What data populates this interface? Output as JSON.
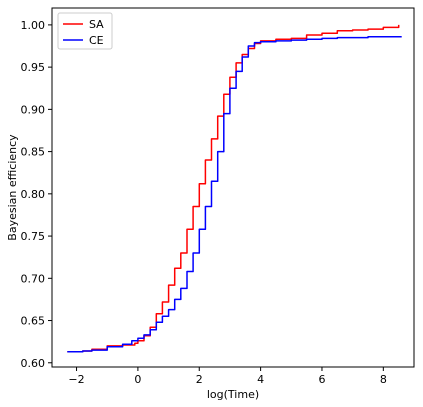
{
  "chart_data": {
    "type": "line",
    "title": "",
    "xlabel": "log(Time)",
    "ylabel": "Bayesian efficiency",
    "xlim": [
      -2.8,
      9.0
    ],
    "ylim": [
      0.595,
      1.02
    ],
    "grid": false,
    "legend_position": "top-left",
    "x_ticks": [
      -2,
      0,
      2,
      4,
      6,
      8
    ],
    "y_ticks": [
      0.6,
      0.65,
      0.7,
      0.75,
      0.8,
      0.85,
      0.9,
      0.95,
      1.0
    ],
    "series": [
      {
        "name": "SA",
        "color": "#ff0000",
        "points": [
          [
            -2.3,
            0.613
          ],
          [
            -1.8,
            0.614
          ],
          [
            -1.5,
            0.616
          ],
          [
            -1.0,
            0.62
          ],
          [
            -0.5,
            0.621
          ],
          [
            -0.3,
            0.621
          ],
          [
            -0.1,
            0.623
          ],
          [
            0.0,
            0.626
          ],
          [
            0.2,
            0.632
          ],
          [
            0.4,
            0.642
          ],
          [
            0.6,
            0.658
          ],
          [
            0.8,
            0.672
          ],
          [
            1.0,
            0.692
          ],
          [
            1.2,
            0.712
          ],
          [
            1.4,
            0.73
          ],
          [
            1.6,
            0.758
          ],
          [
            1.8,
            0.785
          ],
          [
            2.0,
            0.812
          ],
          [
            2.2,
            0.84
          ],
          [
            2.4,
            0.865
          ],
          [
            2.6,
            0.892
          ],
          [
            2.8,
            0.918
          ],
          [
            3.0,
            0.938
          ],
          [
            3.2,
            0.955
          ],
          [
            3.4,
            0.965
          ],
          [
            3.6,
            0.972
          ],
          [
            3.8,
            0.978
          ],
          [
            4.0,
            0.981
          ],
          [
            4.5,
            0.983
          ],
          [
            5.0,
            0.984
          ],
          [
            5.5,
            0.988
          ],
          [
            6.0,
            0.99
          ],
          [
            6.5,
            0.993
          ],
          [
            7.0,
            0.994
          ],
          [
            7.5,
            0.995
          ],
          [
            8.0,
            0.997
          ],
          [
            8.4,
            0.997
          ],
          [
            8.5,
            1.0
          ]
        ]
      },
      {
        "name": "CE",
        "color": "#0000ff",
        "points": [
          [
            -2.3,
            0.613
          ],
          [
            -1.8,
            0.614
          ],
          [
            -1.5,
            0.615
          ],
          [
            -1.0,
            0.619
          ],
          [
            -0.5,
            0.622
          ],
          [
            -0.2,
            0.626
          ],
          [
            0.0,
            0.629
          ],
          [
            0.2,
            0.633
          ],
          [
            0.4,
            0.639
          ],
          [
            0.6,
            0.648
          ],
          [
            0.8,
            0.655
          ],
          [
            1.0,
            0.663
          ],
          [
            1.2,
            0.675
          ],
          [
            1.4,
            0.688
          ],
          [
            1.6,
            0.708
          ],
          [
            1.8,
            0.73
          ],
          [
            2.0,
            0.758
          ],
          [
            2.2,
            0.785
          ],
          [
            2.4,
            0.815
          ],
          [
            2.6,
            0.85
          ],
          [
            2.8,
            0.895
          ],
          [
            3.0,
            0.925
          ],
          [
            3.2,
            0.945
          ],
          [
            3.4,
            0.962
          ],
          [
            3.6,
            0.975
          ],
          [
            3.8,
            0.979
          ],
          [
            4.0,
            0.98
          ],
          [
            4.5,
            0.981
          ],
          [
            5.0,
            0.982
          ],
          [
            5.5,
            0.983
          ],
          [
            6.0,
            0.984
          ],
          [
            6.5,
            0.985
          ],
          [
            7.0,
            0.985
          ],
          [
            7.5,
            0.986
          ],
          [
            8.0,
            0.986
          ],
          [
            8.6,
            0.986
          ]
        ]
      }
    ]
  }
}
